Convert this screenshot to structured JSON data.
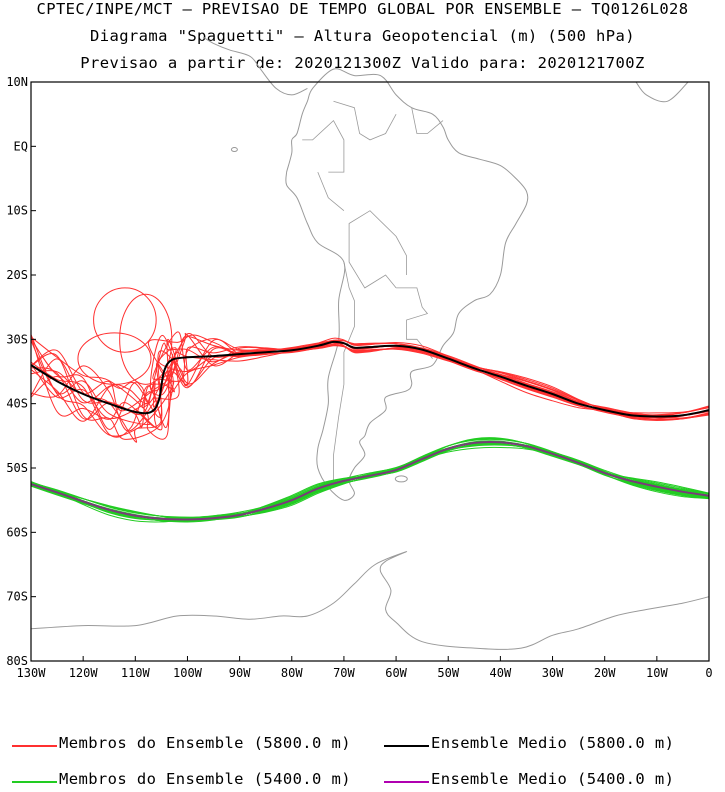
{
  "header": {
    "line1": "CPTEC/INPE/MCT – PREVISAO DE TEMPO GLOBAL POR ENSEMBLE – TQ0126L028",
    "line2": "Diagrama \"Spaguetti\" – Altura Geopotencial (m) (500 hPa)",
    "line3": "Previsao a partir de: 2020121300Z  Valido para: 2020121700Z"
  },
  "legend": [
    {
      "label": "Membros do Ensemble (5800.0 m)",
      "color": "#ff3030"
    },
    {
      "label": "Ensemble Medio (5800.0 m)",
      "color": "#000000"
    },
    {
      "label": "Membros do Ensemble (5400.0 m)",
      "color": "#22cc22"
    },
    {
      "label": "Ensemble Medio (5400.0 m)",
      "color": "#b000b0"
    }
  ],
  "chart_data": {
    "type": "line",
    "map_background": "South America coastline and country borders (gray)",
    "x_ticks": [
      "130W",
      "120W",
      "110W",
      "100W",
      "90W",
      "80W",
      "70W",
      "60W",
      "50W",
      "40W",
      "30W",
      "20W",
      "10W",
      "0"
    ],
    "y_ticks": [
      "10N",
      "EQ",
      "10S",
      "20S",
      "30S",
      "40S",
      "50S",
      "60S",
      "70S",
      "80S"
    ],
    "xlim": [
      -130,
      0
    ],
    "ylim": [
      -80,
      10
    ],
    "series": [
      {
        "name": "Ensemble Medio (5800.0 m)",
        "color": "#000000",
        "x": [
          -130,
          -125,
          -120,
          -115,
          -110,
          -107,
          -105.5,
          -104.5,
          -103,
          -100,
          -95,
          -90,
          -85,
          -80,
          -75,
          -72,
          -70,
          -68,
          -65,
          -60,
          -55,
          -50,
          -45,
          -40,
          -35,
          -30,
          -25,
          -20,
          -15,
          -10,
          -5,
          0
        ],
        "y": [
          -34,
          -36.5,
          -38.5,
          -40,
          -41.3,
          -41.3,
          -39.5,
          -35,
          -33.2,
          -32.8,
          -32.6,
          -32.3,
          -32,
          -31.7,
          -31,
          -30.4,
          -30.6,
          -31.3,
          -31.2,
          -31,
          -31.6,
          -33,
          -34.5,
          -35.8,
          -37.2,
          -38.5,
          -40,
          -41,
          -41.8,
          -42,
          -41.8,
          -41
        ]
      },
      {
        "name": "Ensemble Medio (5400.0 m)",
        "color": "#7a3a7a",
        "x": [
          -130,
          -125,
          -120,
          -115,
          -110,
          -105,
          -100,
          -95,
          -90,
          -85,
          -80,
          -75,
          -70,
          -65,
          -60,
          -55,
          -50,
          -45,
          -40,
          -35,
          -30,
          -25,
          -20,
          -15,
          -10,
          -5,
          0
        ],
        "y": [
          -52.5,
          -53.8,
          -55.2,
          -56.5,
          -57.4,
          -57.9,
          -58,
          -57.8,
          -57.3,
          -56.3,
          -55,
          -53.2,
          -52,
          -51.2,
          -50.3,
          -48.6,
          -47,
          -46.1,
          -46,
          -46.6,
          -47.8,
          -49.2,
          -50.8,
          -52,
          -52.9,
          -53.7,
          -54.3
        ]
      },
      {
        "name": "Membros do Ensemble (5800.0 m)",
        "color": "#ff3030",
        "member_count": 15,
        "y_range": [
          -44,
          -23
        ]
      },
      {
        "name": "Membros do Ensemble (5400.0 m)",
        "color": "#22cc22",
        "member_count": 15,
        "y_range": [
          -59,
          -45
        ]
      }
    ]
  }
}
